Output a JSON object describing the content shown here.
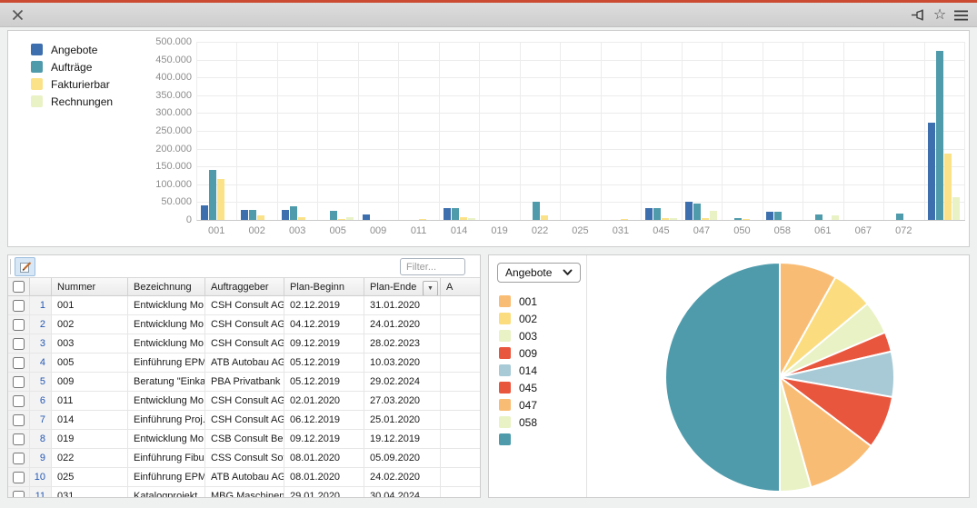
{
  "window": {
    "accent_color": "#cb4b32",
    "toolbar_icons": [
      "close-icon",
      "pin-icon",
      "star-icon",
      "menu-icon"
    ],
    "star_glyph": "☆"
  },
  "chart_data": [
    {
      "type": "bar",
      "title": "",
      "categories": [
        "001",
        "002",
        "003",
        "005",
        "009",
        "011",
        "014",
        "019",
        "022",
        "025",
        "031",
        "045",
        "047",
        "050",
        "058",
        "061",
        "067",
        "072",
        ""
      ],
      "series": [
        {
          "name": "Angebote",
          "color": "#3d6fae",
          "values": [
            42000,
            29000,
            28000,
            0,
            15000,
            0,
            34000,
            0,
            0,
            0,
            0,
            34000,
            52000,
            0,
            24000,
            0,
            0,
            0,
            272000
          ]
        },
        {
          "name": "Aufträge",
          "color": "#4f9bac",
          "values": [
            140000,
            29000,
            38000,
            25000,
            0,
            0,
            34000,
            0,
            50000,
            0,
            0,
            34000,
            45000,
            6000,
            24000,
            16000,
            0,
            18000,
            475000
          ]
        },
        {
          "name": "Fakturierbar",
          "color": "#fbe289",
          "values": [
            115000,
            13000,
            8000,
            3000,
            0,
            2000,
            8000,
            0,
            14000,
            0,
            2000,
            5000,
            6000,
            2000,
            0,
            0,
            0,
            0,
            185000
          ]
        },
        {
          "name": "Rechnungen",
          "color": "#e9f2c5",
          "values": [
            0,
            0,
            0,
            8000,
            0,
            0,
            6000,
            0,
            0,
            0,
            0,
            4000,
            25000,
            0,
            0,
            13000,
            0,
            0,
            65000
          ]
        }
      ],
      "ylim": [
        0,
        500000
      ],
      "y_ticks": [
        "500.000",
        "450.000",
        "400.000",
        "350.000",
        "300.000",
        "250.000",
        "200.000",
        "150.000",
        "100.000",
        "50.000",
        "0"
      ],
      "grid": true,
      "legend_position": "left"
    },
    {
      "type": "pie",
      "selector": "Angebote",
      "labels": [
        "001",
        "002",
        "003",
        "009",
        "014",
        "045",
        "047",
        "058",
        ""
      ],
      "values": [
        8.1,
        5.8,
        4.7,
        2.8,
        6.4,
        7.5,
        10.3,
        4.4,
        50.0
      ],
      "colors": [
        "#f9bc74",
        "#fbdd80",
        "#e9f2c5",
        "#e8563e",
        "#a8cad6",
        "#e8563e",
        "#f9bc74",
        "#e9f2c5",
        "#4f9bac"
      ],
      "legend_position": "left"
    }
  ],
  "table": {
    "filter_placeholder": "Filter...",
    "columns": [
      "Nummer",
      "Bezeichnung",
      "Auftraggeber",
      "Plan-Beginn",
      "Plan-Ende",
      "A"
    ],
    "sorted_column": "Plan-Ende",
    "rows": [
      [
        "1",
        "001",
        "Entwicklung Mo...",
        "CSH Consult AG",
        "02.12.2019",
        "31.01.2020"
      ],
      [
        "2",
        "002",
        "Entwicklung Mo...",
        "CSH Consult AG",
        "04.12.2019",
        "24.01.2020"
      ],
      [
        "3",
        "003",
        "Entwicklung Mo...",
        "CSH Consult AG",
        "09.12.2019",
        "28.02.2023"
      ],
      [
        "4",
        "005",
        "Einführung EPM",
        "ATB Autobau AG",
        "05.12.2019",
        "10.03.2020"
      ],
      [
        "5",
        "009",
        "Beratung \"Einka...",
        "PBA Privatbank ...",
        "05.12.2019",
        "29.02.2024"
      ],
      [
        "6",
        "011",
        "Entwicklung Mo...",
        "CSH Consult AG",
        "02.01.2020",
        "27.03.2020"
      ],
      [
        "7",
        "014",
        "Einführung Proj...",
        "CSH Consult AG",
        "06.12.2019",
        "25.01.2020"
      ],
      [
        "8",
        "019",
        "Entwicklung Mo...",
        "CSB Consult Be...",
        "09.12.2019",
        "19.12.2019"
      ],
      [
        "9",
        "022",
        "Einführung Fibu",
        "CSS Consult Sof...",
        "08.01.2020",
        "05.09.2020"
      ],
      [
        "10",
        "025",
        "Einführung EPM",
        "ATB Autobau AG",
        "08.01.2020",
        "24.02.2020"
      ],
      [
        "11",
        "031",
        "Katalogprojekt",
        "MBG Maschinen...",
        "29.01.2020",
        "30.04.2024"
      ]
    ]
  }
}
